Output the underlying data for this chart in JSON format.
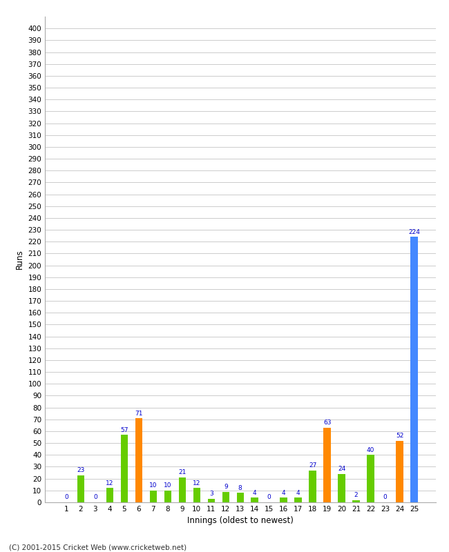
{
  "xlabel": "Innings (oldest to newest)",
  "ylabel": "Runs",
  "innings": [
    1,
    2,
    3,
    4,
    5,
    6,
    7,
    8,
    9,
    10,
    11,
    12,
    13,
    14,
    15,
    16,
    17,
    18,
    19,
    20,
    21,
    22,
    23,
    24,
    25
  ],
  "values": [
    0,
    23,
    0,
    12,
    57,
    71,
    10,
    10,
    21,
    12,
    3,
    9,
    8,
    4,
    0,
    4,
    4,
    27,
    63,
    24,
    2,
    40,
    0,
    52,
    224
  ],
  "colors": [
    "#66cc00",
    "#66cc00",
    "#66cc00",
    "#66cc00",
    "#66cc00",
    "#ff8800",
    "#66cc00",
    "#66cc00",
    "#66cc00",
    "#66cc00",
    "#66cc00",
    "#66cc00",
    "#66cc00",
    "#66cc00",
    "#66cc00",
    "#66cc00",
    "#66cc00",
    "#66cc00",
    "#ff8800",
    "#66cc00",
    "#66cc00",
    "#66cc00",
    "#66cc00",
    "#ff8800",
    "#4488ff"
  ],
  "yticks": [
    0,
    10,
    20,
    30,
    40,
    50,
    60,
    70,
    80,
    90,
    100,
    110,
    120,
    130,
    140,
    150,
    160,
    170,
    180,
    190,
    200,
    210,
    220,
    230,
    240,
    250,
    260,
    270,
    280,
    290,
    300,
    310,
    320,
    330,
    340,
    350,
    360,
    370,
    380,
    390,
    400
  ],
  "ylim": [
    0,
    410
  ],
  "background_color": "#ffffff",
  "grid_color": "#cccccc",
  "label_color": "#0000cc",
  "footer": "(C) 2001-2015 Cricket Web (www.cricketweb.net)",
  "bar_width": 0.5
}
